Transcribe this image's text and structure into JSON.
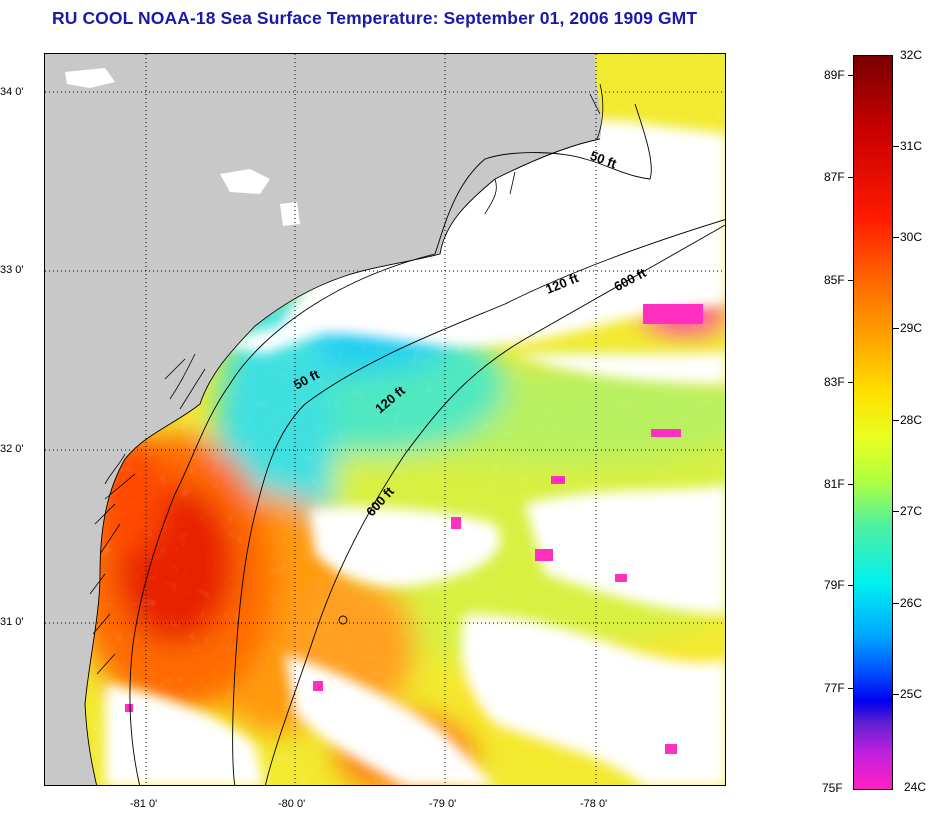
{
  "title": "RU COOL  NOAA-18  Sea Surface Temperature:  September 01, 2006 1909 GMT",
  "lat_labels": [
    "34 0'",
    "33 0'",
    "32 0'",
    "31 0'"
  ],
  "lon_labels": [
    "-81 0'",
    "-80 0'",
    "-79 0'",
    "-78 0'"
  ],
  "isobath_labels": {
    "ft50_north": "50 ft",
    "ft50_south": "50 ft",
    "ft120_north": "120 ft",
    "ft120_south": "120 ft",
    "ft600_north": "600 ft",
    "ft600_south": "600 ft"
  },
  "colorbar": {
    "celsius": [
      "32C",
      "31C",
      "30C",
      "29C",
      "28C",
      "27C",
      "26C",
      "25C",
      "24C"
    ],
    "fahrenheit": [
      "89F",
      "87F",
      "85F",
      "83F",
      "81F",
      "79F",
      "77F",
      "75F"
    ],
    "colors": [
      "#7a0000",
      "#c80000",
      "#ff1a00",
      "#ff6a00",
      "#ffa000",
      "#ffe000",
      "#b0ff40",
      "#00f0f0",
      "#0050ff",
      "#6020d0",
      "#ff20c0"
    ]
  },
  "colors": {
    "land": "#c8c8c8",
    "cloud": "#ffffff",
    "title": "#1a1aa8"
  }
}
